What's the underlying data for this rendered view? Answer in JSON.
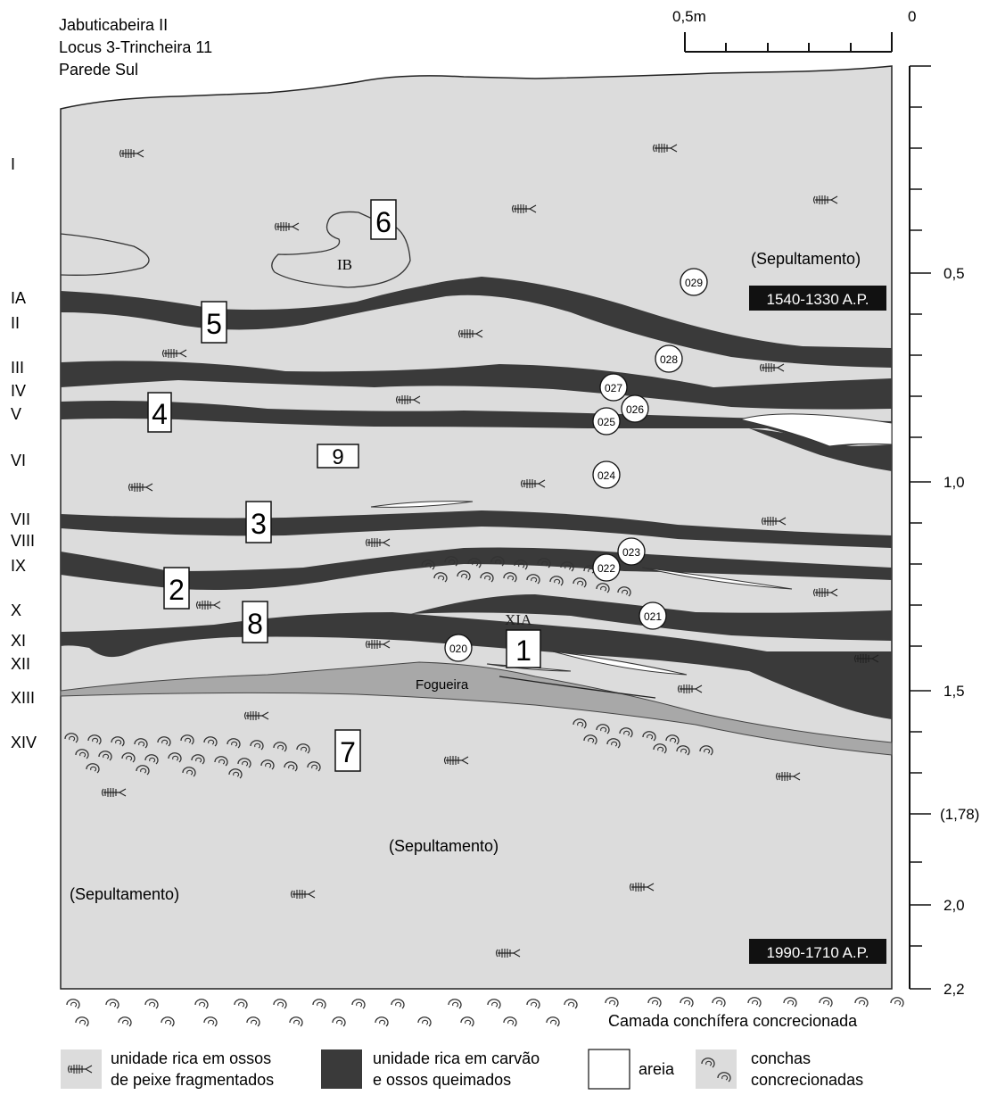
{
  "header": {
    "site": "Jabuticabeira II",
    "locus": "Locus 3-Trincheira 11",
    "wall": "Parede Sul"
  },
  "scale_bar": {
    "label_left": "0,5m",
    "label_right": "0"
  },
  "depth_scale": {
    "labels": [
      "0,5",
      "1,0",
      "1,5",
      "(1,78)",
      "2,0",
      "2,2"
    ]
  },
  "layers": [
    "I",
    "IA",
    "II",
    "III",
    "IV",
    "V",
    "VI",
    "VII",
    "VIII",
    "IX",
    "X",
    "XI",
    "XII",
    "XIII",
    "XIV"
  ],
  "annotations": {
    "ib": "IB",
    "xia": "XIA",
    "fogueira": "Fogueira",
    "sepultamento": "(Sepultamento)",
    "date_upper": "1540-1330 A.P.",
    "date_lower": "1990-1710 A.P.",
    "shell_layer": "Camada conchífera concrecionada"
  },
  "features": [
    "1",
    "2",
    "3",
    "4",
    "5",
    "6",
    "7",
    "8",
    "9"
  ],
  "samples": [
    "020",
    "021",
    "022",
    "023",
    "024",
    "025",
    "026",
    "027",
    "028",
    "029"
  ],
  "legend": {
    "fish_line1": "unidade rica em ossos",
    "fish_line2": "de peixe fragmentados",
    "charcoal_line1": "unidade rica em carvão",
    "charcoal_line2": "e ossos queimados",
    "sand": "areia",
    "shells_line1": "conchas",
    "shells_line2": "concrecionadas"
  },
  "colors": {
    "fill": "#dcdcdc",
    "charcoal": "#3a3a3a",
    "sand": "#ffffff",
    "fogueira": "#a8a8a8",
    "date_bg": "#111111"
  },
  "icons": [
    "fish-bone-icon",
    "shell-icon"
  ]
}
